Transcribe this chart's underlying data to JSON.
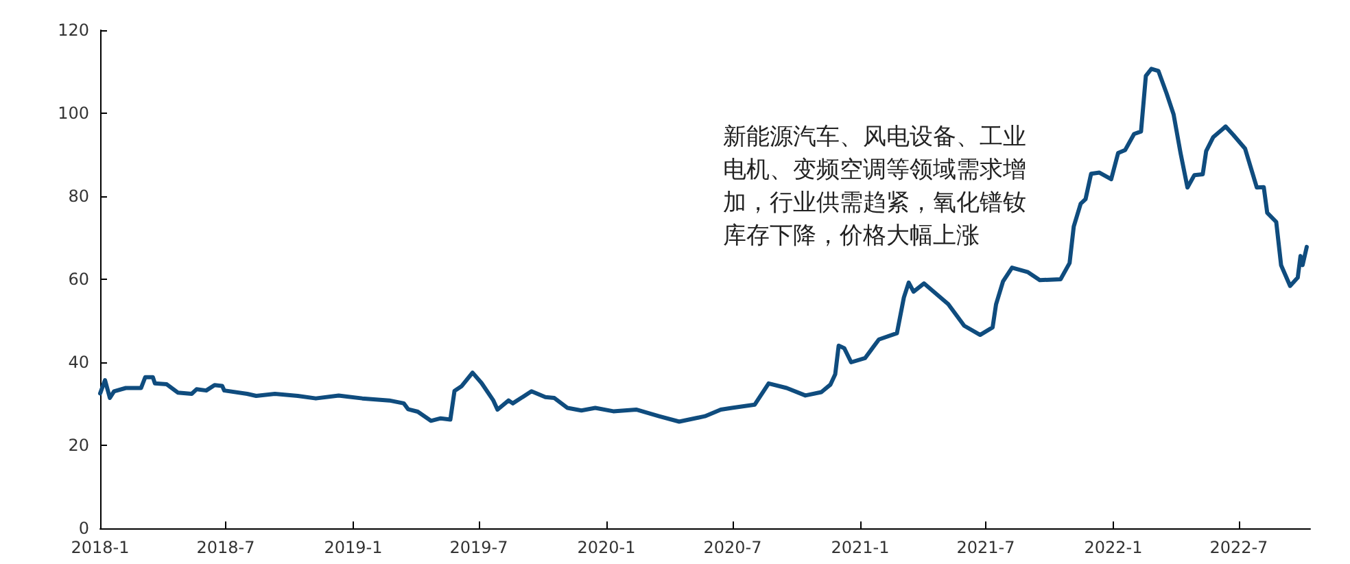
{
  "chart_data": {
    "type": "line",
    "annotations": [
      "新能源汽车、风电设备、工业电机、变频空调等领域需求增加，行业供需趋紧，氧化镨钕库存下降，价格大幅上涨"
    ],
    "x": [
      "2018-01-01",
      "2018-01-08",
      "2018-01-15",
      "2018-01-21",
      "2018-02-07",
      "2018-03-01",
      "2018-03-07",
      "2018-03-18",
      "2018-03-21",
      "2018-04-07",
      "2018-04-23",
      "2018-05-13",
      "2018-05-20",
      "2018-06-03",
      "2018-06-15",
      "2018-06-26",
      "2018-06-29",
      "2018-08-01",
      "2018-08-14",
      "2018-09-10",
      "2018-10-13",
      "2018-11-08",
      "2018-12-11",
      "2019-01-14",
      "2019-02-22",
      "2019-03-15",
      "2019-03-21",
      "2019-04-04",
      "2019-04-23",
      "2019-05-07",
      "2019-05-21",
      "2019-05-27",
      "2019-06-06",
      "2019-06-22",
      "2019-07-05",
      "2019-07-22",
      "2019-07-28",
      "2019-08-13",
      "2019-08-19",
      "2019-09-15",
      "2019-10-05",
      "2019-10-18",
      "2019-11-06",
      "2019-11-26",
      "2019-12-16",
      "2020-01-11",
      "2020-02-13",
      "2020-03-17",
      "2020-04-15",
      "2020-05-22",
      "2020-06-14",
      "2020-06-30",
      "2020-08-02",
      "2020-08-22",
      "2020-09-17",
      "2020-10-14",
      "2020-11-06",
      "2020-11-19",
      "2020-11-26",
      "2020-12-01",
      "2020-12-09",
      "2020-12-19",
      "2021-01-08",
      "2021-01-28",
      "2021-02-23",
      "2021-03-05",
      "2021-03-12",
      "2021-03-19",
      "2021-04-03",
      "2021-05-08",
      "2021-05-31",
      "2021-06-23",
      "2021-07-11",
      "2021-07-16",
      "2021-07-26",
      "2021-08-08",
      "2021-08-31",
      "2021-09-17",
      "2021-10-17",
      "2021-10-30",
      "2021-11-05",
      "2021-11-15",
      "2021-11-22",
      "2021-11-30",
      "2021-12-12",
      "2021-12-29",
      "2022-01-08",
      "2022-01-18",
      "2022-01-31",
      "2022-02-10",
      "2022-02-17",
      "2022-02-25",
      "2022-03-07",
      "2022-03-19",
      "2022-03-29",
      "2022-04-08",
      "2022-04-18",
      "2022-04-28",
      "2022-05-10",
      "2022-05-15",
      "2022-05-25",
      "2022-06-12",
      "2022-06-23",
      "2022-07-10",
      "2022-07-27",
      "2022-08-06",
      "2022-08-11",
      "2022-08-24",
      "2022-08-31",
      "2022-09-13",
      "2022-09-24",
      "2022-09-28",
      "2022-10-01",
      "2022-10-07"
    ],
    "series": [
      {
        "color": "#0f4c7e",
        "values": [
          32.5,
          35.7,
          31.4,
          33,
          33.8,
          33.8,
          36.4,
          36.4,
          34.9,
          34.7,
          32.7,
          32.4,
          33.5,
          33.2,
          34.5,
          34.3,
          33.2,
          32.4,
          31.9,
          32.4,
          31.9,
          31.3,
          32,
          31.3,
          30.8,
          30.1,
          28.7,
          28.1,
          25.9,
          26.5,
          26.2,
          33.1,
          34.2,
          37.5,
          35,
          30.8,
          28.6,
          30.8,
          30.1,
          33,
          31.6,
          31.4,
          29,
          28.4,
          29,
          28.2,
          28.6,
          27,
          25.7,
          27,
          28.6,
          29,
          29.8,
          34.9,
          33.8,
          32,
          32.8,
          34.6,
          37.1,
          44,
          43.4,
          40,
          41,
          45.5,
          47,
          55.6,
          59.2,
          57,
          59,
          54,
          48.8,
          46.6,
          48.4,
          54,
          59.5,
          62.8,
          61.7,
          59.8,
          60,
          63.9,
          72.7,
          78.2,
          79.3,
          85.4,
          85.7,
          84.1,
          90.4,
          91.1,
          95,
          95.6,
          109,
          110.7,
          110.2,
          104.7,
          99.7,
          90.4,
          82.1,
          85.1,
          85.3,
          90.9,
          94.2,
          96.8,
          94.8,
          91.5,
          82.1,
          82.2,
          76,
          73.8,
          63.4,
          58.4,
          60.4,
          65.6,
          63.4,
          67.8
        ]
      }
    ],
    "xlim": [
      "2018-01-01",
      "2022-10-12"
    ],
    "xticks": [
      {
        "value": "2018-01-01",
        "label": "2018-1"
      },
      {
        "value": "2018-07-01",
        "label": "2018-7"
      },
      {
        "value": "2019-01-01",
        "label": "2019-1"
      },
      {
        "value": "2019-07-01",
        "label": "2019-7"
      },
      {
        "value": "2020-01-01",
        "label": "2020-1"
      },
      {
        "value": "2020-07-01",
        "label": "2020-7"
      },
      {
        "value": "2021-01-01",
        "label": "2021-1"
      },
      {
        "value": "2021-07-01",
        "label": "2021-7"
      },
      {
        "value": "2022-01-01",
        "label": "2022-1"
      },
      {
        "value": "2022-07-01",
        "label": "2022-7"
      }
    ],
    "ylim": [
      0,
      120
    ],
    "yticks": [
      0,
      20,
      40,
      60,
      80,
      100,
      120
    ],
    "marker": "none",
    "line_style": "solid"
  }
}
